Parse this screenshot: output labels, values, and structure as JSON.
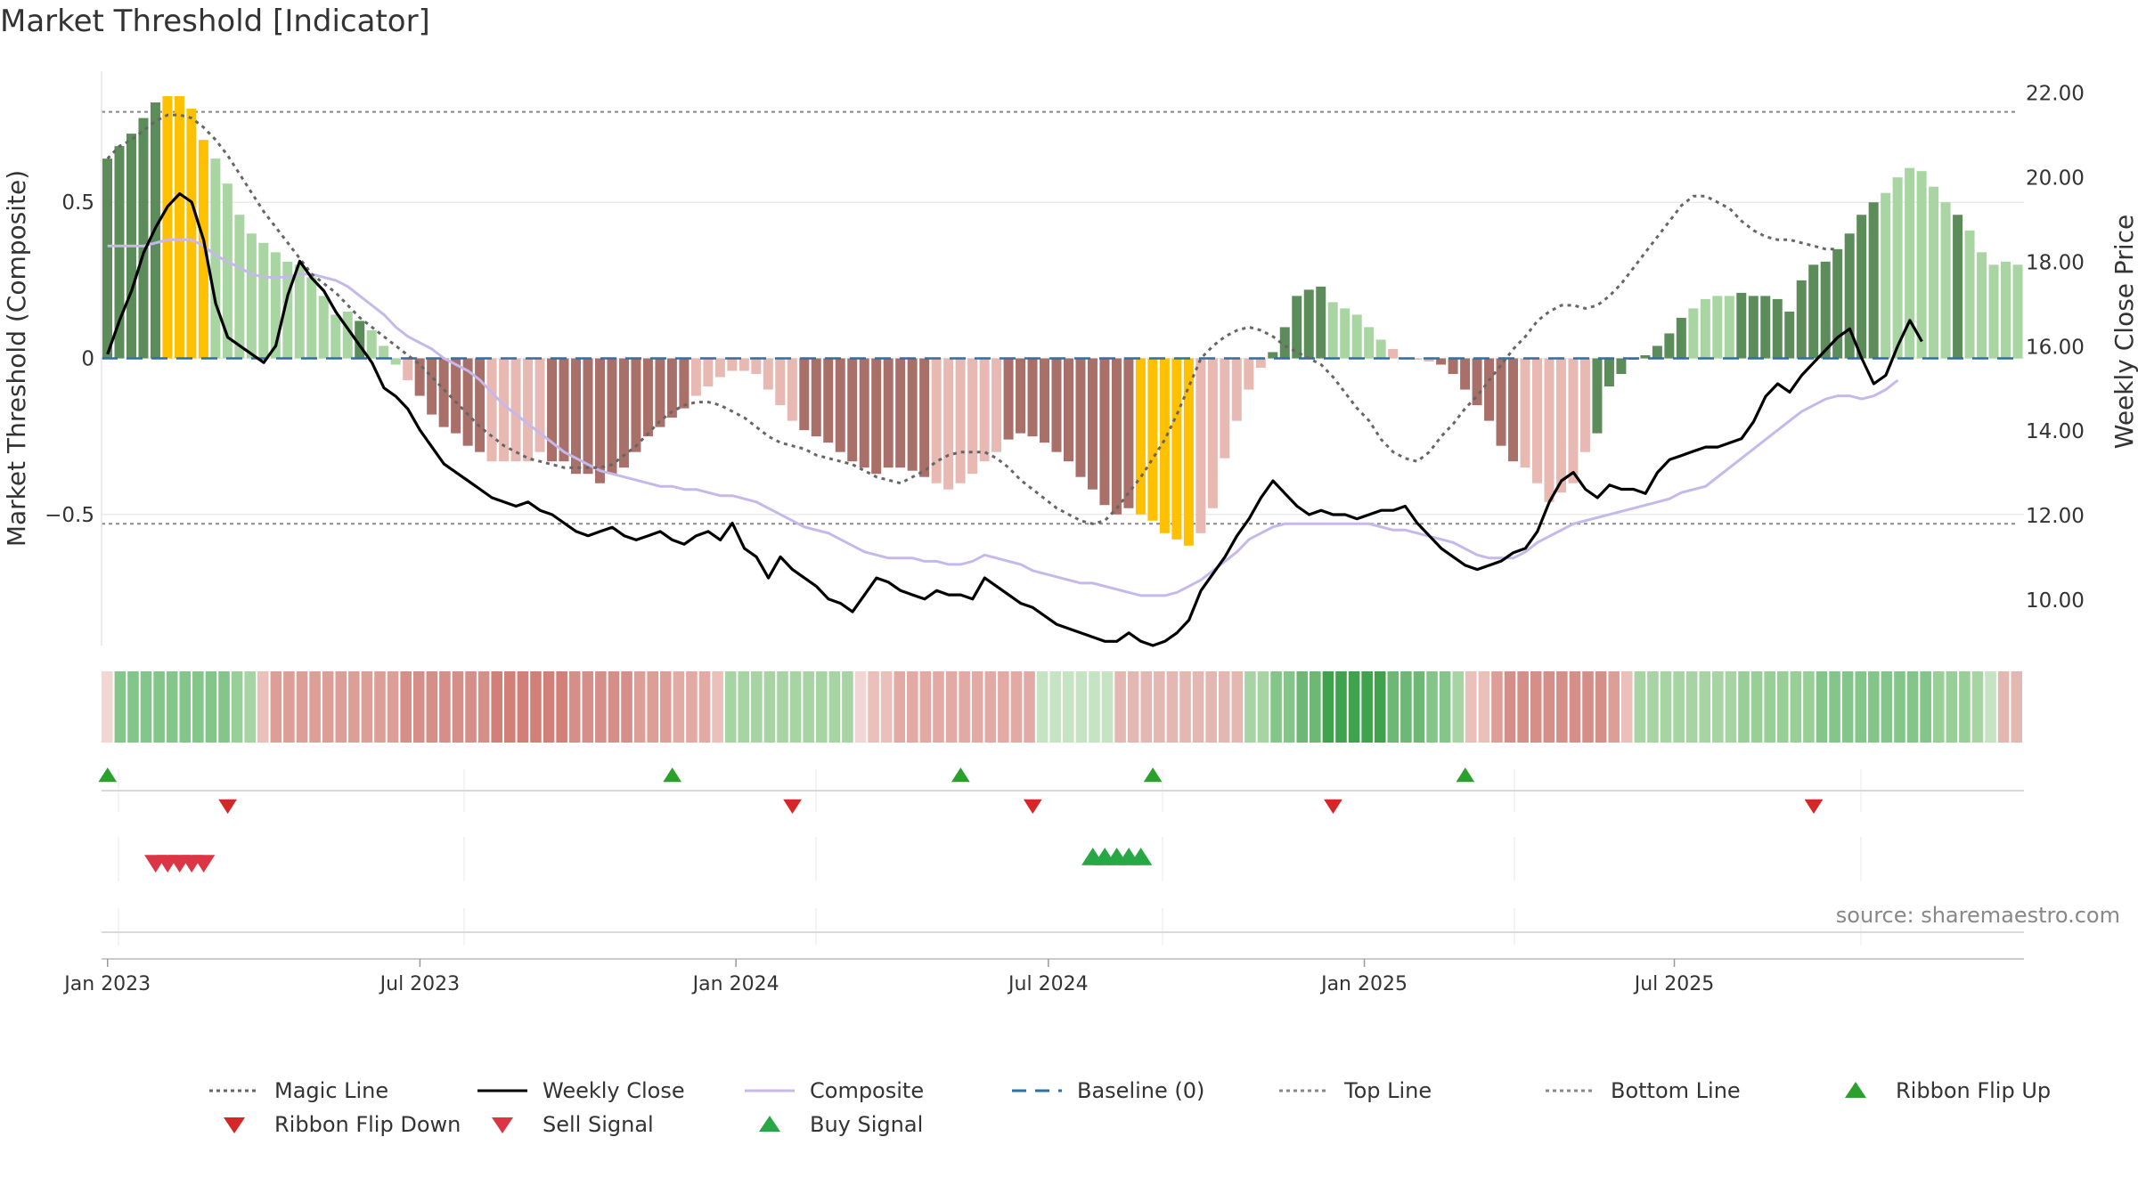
{
  "title": "Market Threshold [Indicator]",
  "source": "source: sharemaestro.com",
  "colors": {
    "strong_up": "#5b8c5a",
    "weak_up": "#a8d5a2",
    "strong_down": "#a9706a",
    "weak_down": "#e8b9b2",
    "extreme": "#ffc000",
    "close": "#000000",
    "composite": "#c5b9ec",
    "magic": "#666666",
    "baseline": "#2f6fa3",
    "ref_line": "#888888",
    "flip_up": "#2ca02c",
    "flip_down": "#d62728",
    "sell": "#dc3545",
    "buy": "#28a745"
  },
  "chart_data": {
    "type": "bar",
    "title": "Market Threshold [Indicator]",
    "ylabel": "Market Threshold (Composite)",
    "y2label": "Weekly Close Price",
    "ylim": [
      -0.92,
      0.92
    ],
    "y2lim": [
      8.9,
      22.5
    ],
    "yticks": [
      {
        "v": -0.5,
        "label": "−0.5"
      },
      {
        "v": 0,
        "label": "0"
      },
      {
        "v": 0.5,
        "label": "0.5"
      }
    ],
    "y2ticks": [
      "10.00",
      "12.00",
      "14.00",
      "16.00",
      "18.00",
      "20.00",
      "22.00"
    ],
    "xticks": [
      {
        "week": 0,
        "label": "Jan 2023"
      },
      {
        "week": 26,
        "label": "Jul 2023"
      },
      {
        "week": 52.3,
        "label": "Jan 2024"
      },
      {
        "week": 78.3,
        "label": "Jul 2024"
      },
      {
        "week": 104.6,
        "label": "Jan 2025"
      },
      {
        "week": 130.4,
        "label": "Jul 2025"
      }
    ],
    "top_line": 0.79,
    "bottom_line": -0.53,
    "baseline": 0,
    "bar_class_codes": "S=strong up, W=weak up, D=strong down, L=weak down, Y=extreme",
    "histogram_values": [
      0.64,
      0.68,
      0.72,
      0.77,
      0.82,
      0.84,
      0.84,
      0.8,
      0.7,
      0.64,
      0.56,
      0.46,
      0.4,
      0.37,
      0.34,
      0.31,
      0.3,
      0.26,
      0.2,
      0.14,
      0.15,
      0.12,
      0.09,
      0.04,
      -0.02,
      -0.07,
      -0.12,
      -0.18,
      -0.22,
      -0.24,
      -0.28,
      -0.3,
      -0.33,
      -0.33,
      -0.33,
      -0.33,
      -0.3,
      -0.33,
      -0.33,
      -0.37,
      -0.37,
      -0.4,
      -0.37,
      -0.35,
      -0.3,
      -0.25,
      -0.22,
      -0.19,
      -0.16,
      -0.12,
      -0.09,
      -0.06,
      -0.04,
      -0.04,
      -0.05,
      -0.1,
      -0.15,
      -0.2,
      -0.23,
      -0.25,
      -0.27,
      -0.3,
      -0.33,
      -0.35,
      -0.37,
      -0.35,
      -0.35,
      -0.36,
      -0.38,
      -0.4,
      -0.42,
      -0.4,
      -0.37,
      -0.33,
      -0.3,
      -0.26,
      -0.24,
      -0.25,
      -0.27,
      -0.3,
      -0.33,
      -0.38,
      -0.42,
      -0.47,
      -0.5,
      -0.48,
      -0.5,
      -0.52,
      -0.56,
      -0.58,
      -0.6,
      -0.56,
      -0.48,
      -0.32,
      -0.2,
      -0.1,
      -0.03,
      0.02,
      0.1,
      0.2,
      0.22,
      0.23,
      0.18,
      0.16,
      0.14,
      0.1,
      0.06,
      0.03,
      0,
      0,
      -0.01,
      -0.02,
      -0.05,
      -0.1,
      -0.15,
      -0.2,
      -0.28,
      -0.33,
      -0.35,
      -0.4,
      -0.46,
      -0.43,
      -0.4,
      -0.3,
      -0.24,
      -0.09,
      -0.05,
      0,
      0.01,
      0.04,
      0.08,
      0.13,
      0.16,
      0.19,
      0.2,
      0.2,
      0.21,
      0.2,
      0.2,
      0.19,
      0.15,
      0.25,
      0.3,
      0.31,
      0.35,
      0.4,
      0.46,
      0.5,
      0.53,
      0.58,
      0.61,
      0.6,
      0.55,
      0.5,
      0.46,
      0.41,
      0.34,
      0.3,
      0.31,
      0.3
    ],
    "histogram_classes": "SSSSSYYYYWWWWWWWWWWWWSWWWLDDDDDDLLLLLDDDDDDDDDDDDLLLLLLLLLDDDDDDDDDDDLLLLLLDDDDDDDDDDDYYYYYLLLLLLSSSSSWWWWWLLLLDDDDDDDLLLLLLSSSSSSSSWWWWSSSSSSSSSSSSWWWWWWS",
    "weekly_close": [
      15.8,
      16.6,
      17.3,
      18.2,
      18.8,
      19.3,
      19.6,
      19.4,
      18.5,
      17.0,
      16.2,
      16.0,
      15.8,
      15.6,
      16.0,
      17.2,
      18.0,
      17.6,
      17.3,
      16.8,
      16.4,
      16.0,
      15.6,
      15.0,
      14.8,
      14.5,
      14.0,
      13.6,
      13.2,
      13.0,
      12.8,
      12.6,
      12.4,
      12.3,
      12.2,
      12.3,
      12.1,
      12.0,
      11.8,
      11.6,
      11.5,
      11.6,
      11.7,
      11.5,
      11.4,
      11.5,
      11.6,
      11.4,
      11.3,
      11.5,
      11.6,
      11.4,
      11.8,
      11.2,
      11.0,
      10.5,
      11.0,
      10.7,
      10.5,
      10.3,
      10.0,
      9.9,
      9.7,
      10.1,
      10.5,
      10.4,
      10.2,
      10.1,
      10.0,
      10.2,
      10.1,
      10.1,
      10.0,
      10.5,
      10.3,
      10.1,
      9.9,
      9.8,
      9.6,
      9.4,
      9.3,
      9.2,
      9.1,
      9.0,
      9.0,
      9.2,
      9.0,
      8.9,
      9.0,
      9.2,
      9.5,
      10.2,
      10.6,
      11.0,
      11.5,
      11.9,
      12.4,
      12.8,
      12.5,
      12.2,
      12.0,
      12.1,
      12.0,
      12.0,
      11.9,
      12.0,
      12.1,
      12.1,
      12.2,
      11.8,
      11.5,
      11.2,
      11.0,
      10.8,
      10.7,
      10.8,
      10.9,
      11.1,
      11.2,
      11.6,
      12.3,
      12.8,
      13.0,
      12.6,
      12.4,
      12.7,
      12.6,
      12.6,
      12.5,
      13.0,
      13.3,
      13.4,
      13.5,
      13.6,
      13.6,
      13.7,
      13.8,
      14.2,
      14.8,
      15.1,
      14.9,
      15.3,
      15.6,
      15.9,
      16.2,
      16.4,
      15.7,
      15.1,
      15.3,
      16.0,
      16.6,
      16.1
    ],
    "composite": [
      0.36,
      0.36,
      0.36,
      0.36,
      0.37,
      0.38,
      0.38,
      0.38,
      0.36,
      0.33,
      0.31,
      0.29,
      0.27,
      0.26,
      0.26,
      0.26,
      0.27,
      0.27,
      0.26,
      0.25,
      0.23,
      0.2,
      0.17,
      0.14,
      0.1,
      0.07,
      0.05,
      0.03,
      0.0,
      -0.02,
      -0.04,
      -0.07,
      -0.11,
      -0.15,
      -0.18,
      -0.21,
      -0.24,
      -0.27,
      -0.3,
      -0.32,
      -0.34,
      -0.36,
      -0.37,
      -0.38,
      -0.39,
      -0.4,
      -0.41,
      -0.41,
      -0.42,
      -0.42,
      -0.43,
      -0.44,
      -0.44,
      -0.45,
      -0.46,
      -0.48,
      -0.5,
      -0.52,
      -0.54,
      -0.55,
      -0.56,
      -0.58,
      -0.6,
      -0.62,
      -0.63,
      -0.64,
      -0.64,
      -0.64,
      -0.65,
      -0.65,
      -0.66,
      -0.66,
      -0.65,
      -0.63,
      -0.64,
      -0.65,
      -0.66,
      -0.68,
      -0.69,
      -0.7,
      -0.71,
      -0.72,
      -0.72,
      -0.73,
      -0.74,
      -0.75,
      -0.76,
      -0.76,
      -0.76,
      -0.75,
      -0.73,
      -0.71,
      -0.68,
      -0.65,
      -0.62,
      -0.58,
      -0.56,
      -0.54,
      -0.53,
      -0.53,
      -0.53,
      -0.53,
      -0.53,
      -0.53,
      -0.53,
      -0.53,
      -0.54,
      -0.55,
      -0.55,
      -0.56,
      -0.57,
      -0.58,
      -0.59,
      -0.61,
      -0.63,
      -0.64,
      -0.64,
      -0.64,
      -0.62,
      -0.59,
      -0.57,
      -0.55,
      -0.53,
      -0.52,
      -0.51,
      -0.5,
      -0.49,
      -0.48,
      -0.47,
      -0.46,
      -0.45,
      -0.43,
      -0.42,
      -0.41,
      -0.38,
      -0.35,
      -0.32,
      -0.29,
      -0.26,
      -0.23,
      -0.2,
      -0.17,
      -0.15,
      -0.13,
      -0.12,
      -0.12,
      -0.13,
      -0.12,
      -0.1,
      -0.07
    ],
    "magic_line": [
      0.64,
      0.68,
      0.7,
      0.73,
      0.76,
      0.78,
      0.78,
      0.77,
      0.74,
      0.7,
      0.65,
      0.59,
      0.53,
      0.47,
      0.42,
      0.37,
      0.32,
      0.27,
      0.24,
      0.21,
      0.17,
      0.13,
      0.1,
      0.07,
      0.04,
      0.01,
      -0.02,
      -0.06,
      -0.1,
      -0.14,
      -0.18,
      -0.22,
      -0.25,
      -0.28,
      -0.3,
      -0.32,
      -0.33,
      -0.34,
      -0.35,
      -0.35,
      -0.35,
      -0.35,
      -0.34,
      -0.31,
      -0.28,
      -0.24,
      -0.2,
      -0.17,
      -0.15,
      -0.14,
      -0.14,
      -0.15,
      -0.17,
      -0.19,
      -0.22,
      -0.25,
      -0.27,
      -0.28,
      -0.29,
      -0.31,
      -0.32,
      -0.33,
      -0.34,
      -0.36,
      -0.38,
      -0.39,
      -0.4,
      -0.38,
      -0.36,
      -0.33,
      -0.31,
      -0.3,
      -0.3,
      -0.3,
      -0.32,
      -0.35,
      -0.39,
      -0.42,
      -0.45,
      -0.48,
      -0.5,
      -0.52,
      -0.53,
      -0.52,
      -0.48,
      -0.43,
      -0.38,
      -0.32,
      -0.26,
      -0.18,
      -0.09,
      0.0,
      0.04,
      0.07,
      0.09,
      0.1,
      0.09,
      0.07,
      0.04,
      0.02,
      0.0,
      -0.02,
      -0.06,
      -0.11,
      -0.16,
      -0.2,
      -0.26,
      -0.3,
      -0.32,
      -0.33,
      -0.3,
      -0.25,
      -0.21,
      -0.16,
      -0.12,
      -0.07,
      -0.02,
      0.03,
      0.07,
      0.12,
      0.15,
      0.17,
      0.17,
      0.16,
      0.17,
      0.2,
      0.24,
      0.29,
      0.34,
      0.39,
      0.44,
      0.49,
      0.52,
      0.52,
      0.5,
      0.48,
      0.44,
      0.41,
      0.39,
      0.38,
      0.38,
      0.37,
      0.36,
      0.35,
      0.35
    ],
    "ribbon_colors": [
      "#f1d6d4",
      "#84c68a",
      "#84c68a",
      "#84c68a",
      "#84c68a",
      "#84c68a",
      "#84c68a",
      "#84c68a",
      "#84c68a",
      "#84c68a",
      "#97cf97",
      "#a6d5a3",
      "#ebc0bb",
      "#de9e98",
      "#de9e98",
      "#de9e98",
      "#de9e98",
      "#de9e98",
      "#de9e98",
      "#de9e98",
      "#de9e98",
      "#de9e98",
      "#de9e98",
      "#d58e88",
      "#d58e88",
      "#d58e88",
      "#d58e88",
      "#d58e88",
      "#d58e88",
      "#d58e88",
      "#d27f78",
      "#d27f78",
      "#d27f78",
      "#d27f78",
      "#d27f78",
      "#d27f78",
      "#d58e88",
      "#d58e88",
      "#d58e88",
      "#d58e88",
      "#d58e88",
      "#de9e98",
      "#de9e98",
      "#de9e98",
      "#e3aaa5",
      "#e3aaa5",
      "#e3aaa5",
      "#ebc0bb",
      "#a6d5a3",
      "#a6d5a3",
      "#a6d5a3",
      "#a6d5a3",
      "#a6d5a3",
      "#a6d5a3",
      "#a6d5a3",
      "#a6d5a3",
      "#a6d5a3",
      "#a6d5a3",
      "#f1d6d4",
      "#ebc0bb",
      "#ebc0bb",
      "#e3aaa5",
      "#e3aaa5",
      "#e3aaa5",
      "#e3aaa5",
      "#e3aaa5",
      "#e3aaa5",
      "#e3aaa5",
      "#e3aaa5",
      "#e3aaa5",
      "#e3aaa5",
      "#e3aaa5",
      "#c6e4c4",
      "#c6e4c4",
      "#c6e4c4",
      "#c6e4c4",
      "#c6e4c4",
      "#c6e4c4",
      "#e3b8b3",
      "#e3b8b3",
      "#e3b8b3",
      "#e3b8b3",
      "#e3b8b3",
      "#e3b8b3",
      "#e3b8b3",
      "#e3b8b3",
      "#e3b8b3",
      "#e3b8b3",
      "#a6d5a3",
      "#a6d5a3",
      "#84c68a",
      "#84c68a",
      "#6cb874",
      "#6cb874",
      "#3fa34d",
      "#3fa34d",
      "#3fa34d",
      "#3fa34d",
      "#3fa34d",
      "#6cb874",
      "#6cb874",
      "#6cb874",
      "#84c68a",
      "#84c68a",
      "#a6d5a3",
      "#ebc0bb",
      "#ebc0bb",
      "#de9e98",
      "#d58e88",
      "#d58e88",
      "#d58e88",
      "#d58e88",
      "#d58e88",
      "#d58e88",
      "#d58e88",
      "#d58e88",
      "#de9e98",
      "#ebc0bb",
      "#a6d5a3",
      "#a6d5a3",
      "#a6d5a3",
      "#a6d5a3",
      "#a6d5a3",
      "#a6d5a3",
      "#a6d5a3",
      "#a6d5a3",
      "#97cf97",
      "#97cf97",
      "#97cf97",
      "#97cf97",
      "#97cf97",
      "#97cf97",
      "#84c68a",
      "#84c68a",
      "#84c68a",
      "#84c68a",
      "#84c68a",
      "#84c68a",
      "#84c68a",
      "#84c68a",
      "#84c68a",
      "#97cf97",
      "#97cf97",
      "#97cf97",
      "#a6d5a3",
      "#c6e4c4",
      "#e3b8b3",
      "#e3b8b3"
    ],
    "ribbon_flip_up_weeks": [
      0,
      47,
      71,
      87,
      113
    ],
    "ribbon_flip_down_weeks": [
      10,
      57,
      77,
      102,
      142
    ],
    "sell_signal_weeks": [
      4,
      5,
      6,
      7,
      8
    ],
    "buy_signal_weeks": [
      82,
      83,
      84,
      85,
      86
    ],
    "legend": [
      {
        "label": "Magic Line",
        "kind": "dotted-line",
        "color": "#666666"
      },
      {
        "label": "Weekly Close",
        "kind": "solid-line",
        "color": "#000000"
      },
      {
        "label": "Composite",
        "kind": "solid-line",
        "color": "#c5b9ec"
      },
      {
        "label": "Baseline (0)",
        "kind": "dashed-line",
        "color": "#2f6fa3"
      },
      {
        "label": "Top Line",
        "kind": "dotted-line",
        "color": "#888888"
      },
      {
        "label": "Bottom Line",
        "kind": "dotted-line",
        "color": "#888888"
      },
      {
        "label": "Ribbon Flip Up",
        "kind": "triangle-up",
        "color": "#2ca02c"
      },
      {
        "label": "Ribbon Flip Down",
        "kind": "triangle-down",
        "color": "#d62728"
      },
      {
        "label": "Sell Signal",
        "kind": "triangle-down",
        "color": "#dc3545"
      },
      {
        "label": "Buy Signal",
        "kind": "triangle-up",
        "color": "#28a745"
      }
    ],
    "legend_placement": "bottom"
  }
}
